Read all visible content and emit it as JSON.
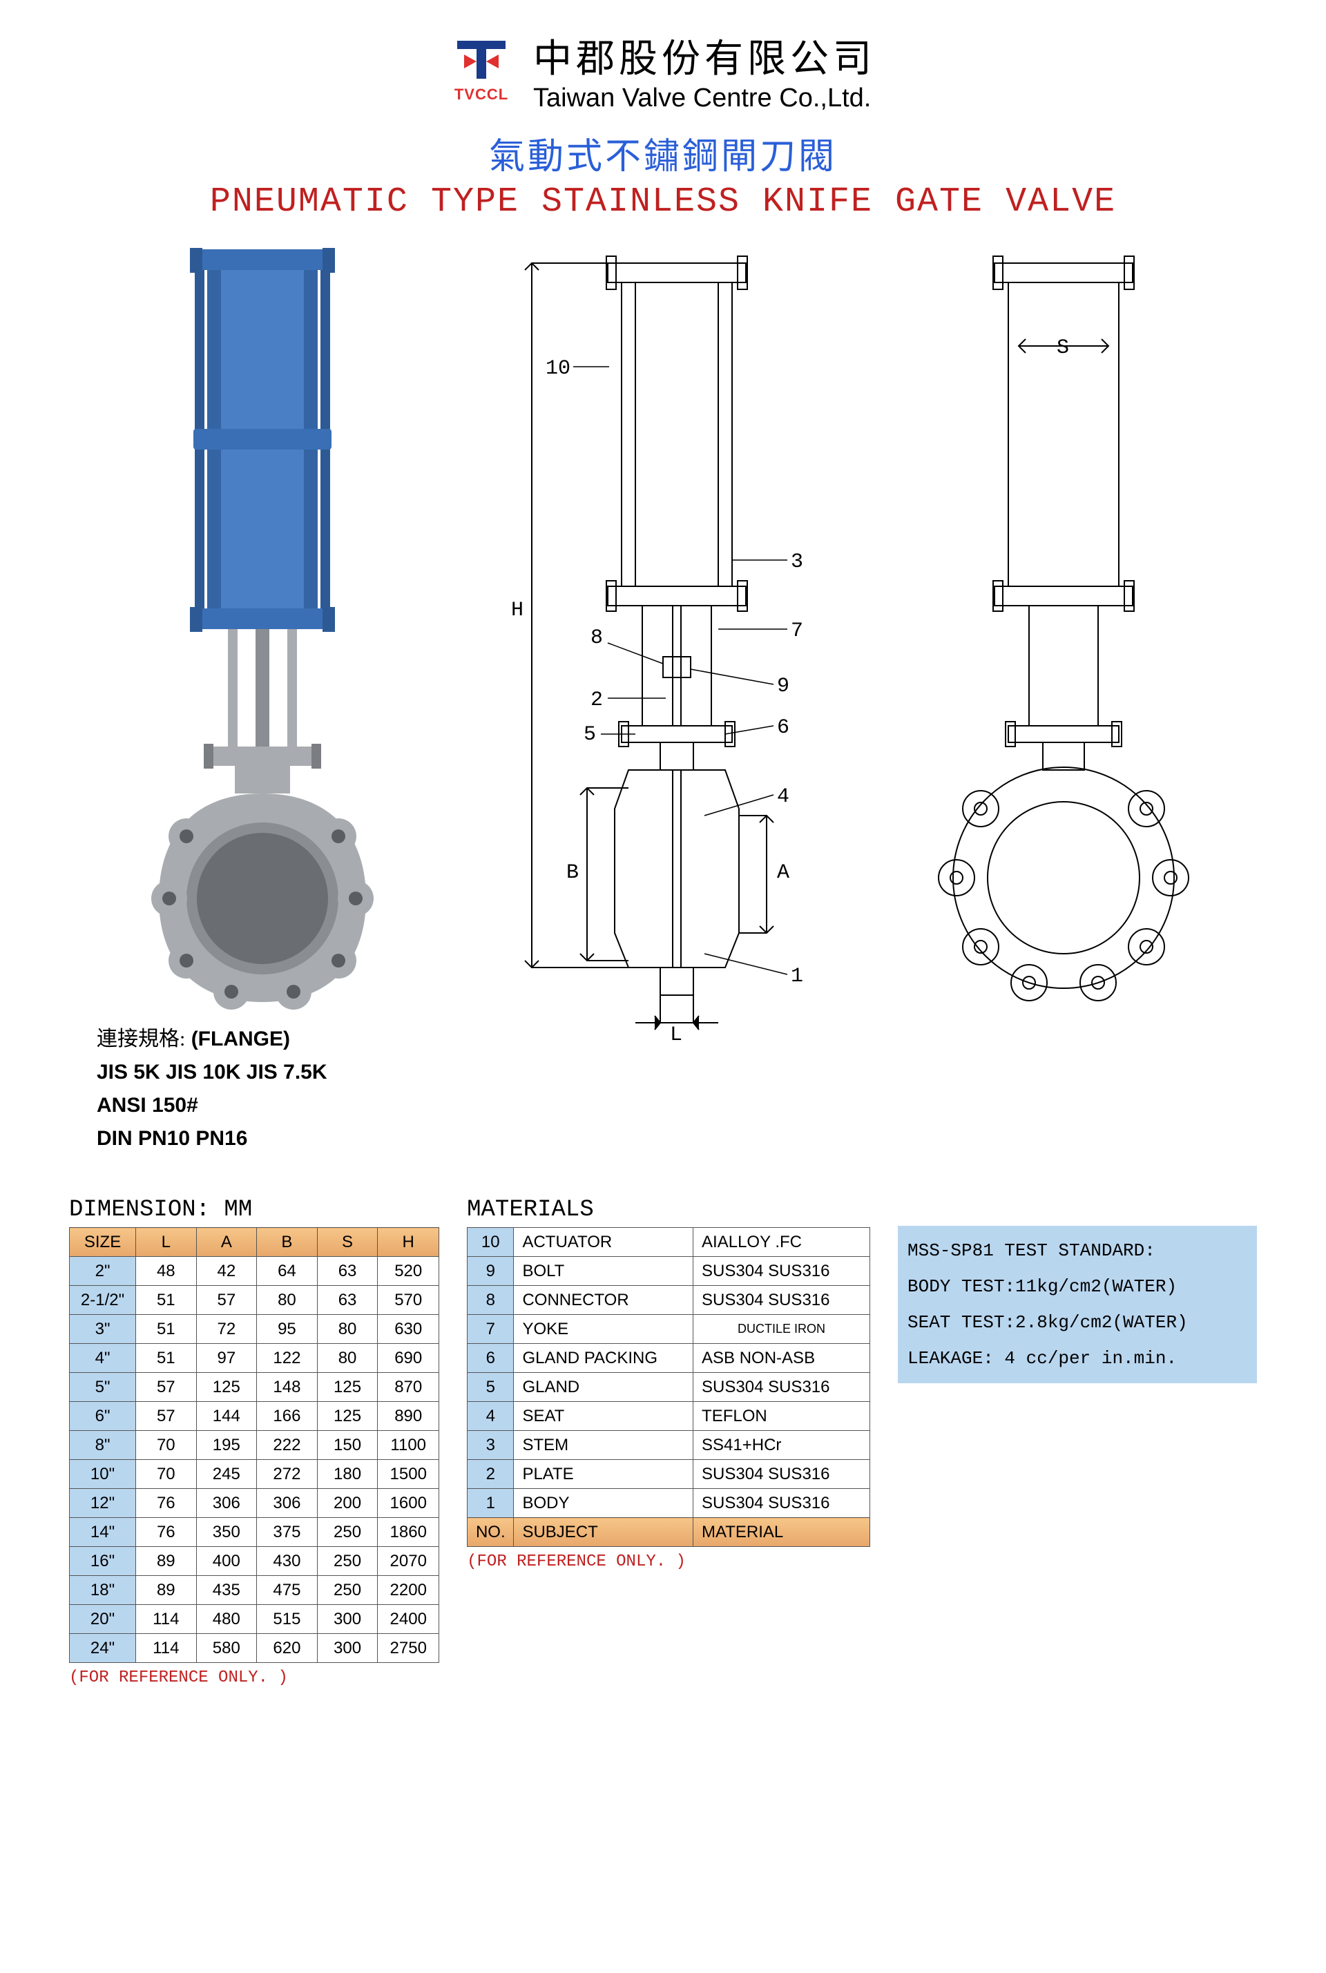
{
  "logo": {
    "brand": "TVCCL"
  },
  "company": {
    "zh": "中郡股份有限公司",
    "en": "Taiwan Valve Centre Co.,Ltd."
  },
  "title": {
    "zh": "氣動式不鏽鋼閘刀閥",
    "en": "PNEUMATIC TYPE STAINLESS KNIFE GATE VALVE"
  },
  "flange": {
    "label": "連接規格: (FLANGE)",
    "line1": "JIS 5K   JIS 10K   JIS 7.5K",
    "line2": "ANSI 150#",
    "line3": "DIN PN10 PN16"
  },
  "diagram": {
    "dim_H": "H",
    "dim_B": "B",
    "dim_A": "A",
    "dim_L": "L",
    "dim_S": "S",
    "callouts": [
      "1",
      "2",
      "3",
      "4",
      "5",
      "6",
      "7",
      "8",
      "9",
      "10"
    ]
  },
  "render_colors": {
    "actuator": "#3a6fb5",
    "body": "#a8acb0",
    "shadow": "#6a6e72"
  },
  "dimension": {
    "title": "DIMENSION: MM",
    "headers": [
      "SIZE",
      "L",
      "A",
      "B",
      "S",
      "H"
    ],
    "rows": [
      [
        "2\"",
        "48",
        "42",
        "64",
        "63",
        "520"
      ],
      [
        "2-1/2\"",
        "51",
        "57",
        "80",
        "63",
        "570"
      ],
      [
        "3\"",
        "51",
        "72",
        "95",
        "80",
        "630"
      ],
      [
        "4\"",
        "51",
        "97",
        "122",
        "80",
        "690"
      ],
      [
        "5\"",
        "57",
        "125",
        "148",
        "125",
        "870"
      ],
      [
        "6\"",
        "57",
        "144",
        "166",
        "125",
        "890"
      ],
      [
        "8\"",
        "70",
        "195",
        "222",
        "150",
        "1100"
      ],
      [
        "10\"",
        "70",
        "245",
        "272",
        "180",
        "1500"
      ],
      [
        "12\"",
        "76",
        "306",
        "306",
        "200",
        "1600"
      ],
      [
        "14\"",
        "76",
        "350",
        "375",
        "250",
        "1860"
      ],
      [
        "16\"",
        "89",
        "400",
        "430",
        "250",
        "2070"
      ],
      [
        "18\"",
        "89",
        "435",
        "475",
        "250",
        "2200"
      ],
      [
        "20\"",
        "114",
        "480",
        "515",
        "300",
        "2400"
      ],
      [
        "24\"",
        "114",
        "580",
        "620",
        "300",
        "2750"
      ]
    ],
    "note": "(FOR REFERENCE ONLY. )"
  },
  "materials": {
    "title": "MATERIALS",
    "headers": [
      "NO.",
      "SUBJECT",
      "MATERIAL"
    ],
    "rows": [
      [
        "10",
        "ACTUATOR",
        "AIALLOY .FC"
      ],
      [
        "9",
        "BOLT",
        "SUS304  SUS316"
      ],
      [
        "8",
        "CONNECTOR",
        "SUS304  SUS316"
      ],
      [
        "7",
        "YOKE",
        "DUCTILE IRON"
      ],
      [
        "6",
        "GLAND PACKING",
        "ASB NON-ASB"
      ],
      [
        "5",
        "GLAND",
        "SUS304  SUS316"
      ],
      [
        "4",
        "SEAT",
        "TEFLON"
      ],
      [
        "3",
        "STEM",
        "SS41+HCr"
      ],
      [
        "2",
        "PLATE",
        "SUS304  SUS316"
      ],
      [
        "1",
        "BODY",
        "SUS304  SUS316"
      ]
    ],
    "note": "(FOR REFERENCE ONLY. )"
  },
  "test": {
    "line1": "MSS-SP81 TEST STANDARD:",
    "line2": "BODY TEST:11kg/cm2(WATER)",
    "line3": "SEAT TEST:2.8kg/cm2(WATER)",
    "line4": "LEAKAGE: 4 cc/per in.min."
  }
}
